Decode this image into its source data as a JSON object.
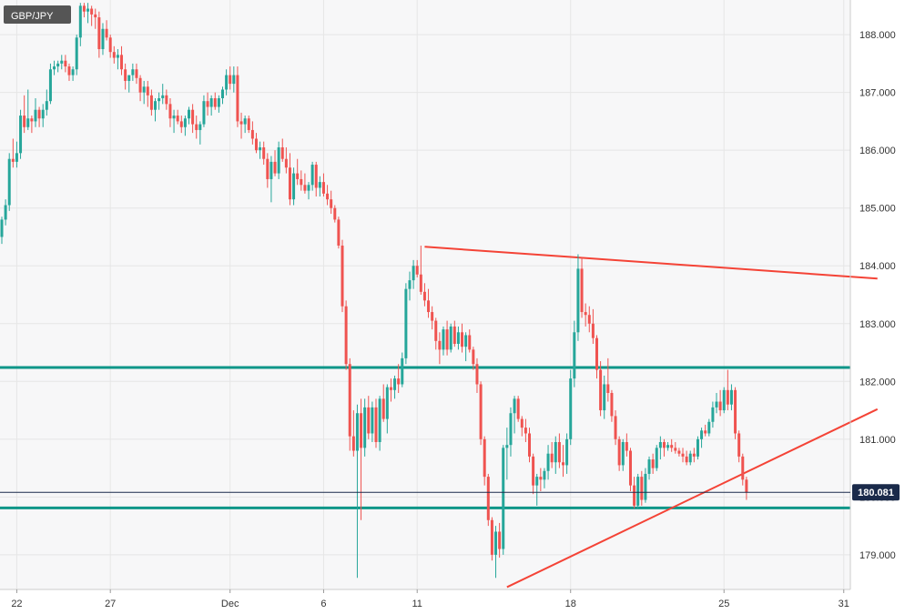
{
  "symbol": "GBP/JPY",
  "colors": {
    "up": "#26a69a",
    "down": "#ef5350",
    "trendline": "#f44336",
    "support": "#0e9688",
    "grid": "#e6e6e6",
    "plot_bg": "#f7f7f8",
    "axis_text": "#333333",
    "badge_bg": "#555555",
    "price_line": "#1a2a4a",
    "price_badge_bg": "#1a2a4a"
  },
  "chart_data": {
    "type": "candlestick",
    "title": "GBP/JPY",
    "timeframe": "4-hour candles",
    "ylim": [
      178.4,
      188.6
    ],
    "y_ticks": [
      179.0,
      180.0,
      181.0,
      182.0,
      183.0,
      184.0,
      185.0,
      186.0,
      187.0,
      188.0
    ],
    "y_tick_labels": [
      "179.000",
      "180.000",
      "181.000",
      "182.000",
      "183.000",
      "184.000",
      "185.000",
      "186.000",
      "187.000",
      "188.000"
    ],
    "x_ticks": [
      {
        "label": "22",
        "index": 4
      },
      {
        "label": "27",
        "index": 29
      },
      {
        "label": "Dec",
        "index": 61
      },
      {
        "label": "6",
        "index": 86
      },
      {
        "label": "11",
        "index": 111
      },
      {
        "label": "18",
        "index": 152
      },
      {
        "label": "25",
        "index": 193
      },
      {
        "label": "31",
        "index": 225
      }
    ],
    "x_range": [
      0,
      234
    ],
    "last_price": 180.081,
    "last_price_label": "180.081",
    "horizontal_levels": [
      182.24,
      179.81
    ],
    "trendlines": [
      {
        "from": [
          113,
          184.33
        ],
        "to": [
          234,
          183.78
        ]
      },
      {
        "from": [
          135,
          178.44
        ],
        "to": [
          234,
          181.52
        ]
      }
    ],
    "candles": [
      [
        0,
        184.5,
        184.85,
        184.38,
        184.8
      ],
      [
        1,
        184.8,
        185.15,
        184.7,
        185.05
      ],
      [
        2,
        185.05,
        185.95,
        184.95,
        185.85
      ],
      [
        3,
        185.85,
        186.2,
        185.7,
        185.8
      ],
      [
        4,
        185.8,
        186.15,
        185.7,
        185.95
      ],
      [
        5,
        185.95,
        186.7,
        185.85,
        186.6
      ],
      [
        6,
        186.6,
        186.95,
        186.3,
        186.4
      ],
      [
        7,
        186.4,
        187.05,
        186.35,
        186.55
      ],
      [
        8,
        186.55,
        186.6,
        186.3,
        186.5
      ],
      [
        9,
        186.5,
        186.9,
        186.4,
        186.7
      ],
      [
        10,
        186.7,
        186.75,
        186.4,
        186.55
      ],
      [
        11,
        186.55,
        186.8,
        186.4,
        186.7
      ],
      [
        12,
        186.7,
        187.05,
        186.6,
        186.85
      ],
      [
        13,
        186.85,
        187.5,
        186.8,
        187.4
      ],
      [
        14,
        187.4,
        187.55,
        187.3,
        187.45
      ],
      [
        15,
        187.45,
        187.55,
        187.35,
        187.5
      ],
      [
        16,
        187.5,
        187.65,
        187.4,
        187.55
      ],
      [
        17,
        187.55,
        187.65,
        187.35,
        187.45
      ],
      [
        18,
        187.45,
        187.5,
        187.2,
        187.3
      ],
      [
        19,
        187.3,
        187.45,
        187.2,
        187.4
      ],
      [
        20,
        187.4,
        188.0,
        187.3,
        187.95
      ],
      [
        21,
        187.95,
        188.55,
        187.8,
        188.5
      ],
      [
        22,
        188.5,
        188.55,
        188.3,
        188.4
      ],
      [
        23,
        188.4,
        188.55,
        188.2,
        188.45
      ],
      [
        24,
        188.45,
        188.5,
        188.15,
        188.35
      ],
      [
        25,
        188.35,
        188.45,
        188.1,
        188.3
      ],
      [
        26,
        188.3,
        188.4,
        187.6,
        187.75
      ],
      [
        27,
        187.75,
        188.2,
        187.65,
        188.1
      ],
      [
        28,
        188.1,
        188.25,
        187.9,
        187.95
      ],
      [
        29,
        187.95,
        188.0,
        187.6,
        187.7
      ],
      [
        30,
        187.7,
        187.8,
        187.5,
        187.6
      ],
      [
        31,
        187.6,
        187.75,
        187.4,
        187.65
      ],
      [
        32,
        187.65,
        187.8,
        187.3,
        187.4
      ],
      [
        33,
        187.4,
        187.5,
        187.05,
        187.2
      ],
      [
        34,
        187.2,
        187.3,
        187.0,
        187.3
      ],
      [
        35,
        187.3,
        187.5,
        187.2,
        187.4
      ],
      [
        36,
        187.4,
        187.5,
        187.15,
        187.25
      ],
      [
        37,
        187.25,
        187.3,
        186.85,
        187.0
      ],
      [
        38,
        187.0,
        187.2,
        186.8,
        187.1
      ],
      [
        39,
        187.1,
        187.2,
        186.75,
        186.95
      ],
      [
        40,
        186.95,
        187.05,
        186.6,
        186.7
      ],
      [
        41,
        186.7,
        186.9,
        186.5,
        186.85
      ],
      [
        42,
        186.85,
        187.0,
        186.7,
        186.9
      ],
      [
        43,
        186.9,
        187.15,
        186.8,
        186.95
      ],
      [
        44,
        186.95,
        187.05,
        186.7,
        186.8
      ],
      [
        45,
        186.8,
        186.9,
        186.4,
        186.55
      ],
      [
        46,
        186.55,
        186.7,
        186.3,
        186.6
      ],
      [
        47,
        186.6,
        186.7,
        186.45,
        186.5
      ],
      [
        48,
        186.5,
        186.6,
        186.3,
        186.4
      ],
      [
        49,
        186.4,
        186.6,
        186.25,
        186.55
      ],
      [
        50,
        186.55,
        186.75,
        186.45,
        186.7
      ],
      [
        51,
        186.7,
        186.8,
        186.3,
        186.45
      ],
      [
        52,
        186.45,
        186.6,
        186.2,
        186.35
      ],
      [
        53,
        186.35,
        186.5,
        186.1,
        186.45
      ],
      [
        54,
        186.45,
        186.95,
        186.4,
        186.85
      ],
      [
        55,
        186.85,
        187.0,
        186.6,
        186.75
      ],
      [
        56,
        186.75,
        186.95,
        186.6,
        186.9
      ],
      [
        57,
        186.9,
        187.0,
        186.7,
        186.75
      ],
      [
        58,
        186.75,
        186.95,
        186.65,
        186.9
      ],
      [
        59,
        186.9,
        187.1,
        186.8,
        187.05
      ],
      [
        60,
        187.05,
        187.4,
        186.95,
        187.3
      ],
      [
        61,
        187.3,
        187.45,
        187.05,
        187.15
      ],
      [
        62,
        187.15,
        187.45,
        187.0,
        187.3
      ],
      [
        63,
        187.3,
        187.45,
        186.4,
        186.5
      ],
      [
        64,
        186.5,
        186.65,
        186.2,
        186.45
      ],
      [
        65,
        186.45,
        186.6,
        186.3,
        186.55
      ],
      [
        66,
        186.55,
        186.6,
        186.3,
        186.35
      ],
      [
        67,
        186.35,
        186.5,
        186.1,
        186.2
      ],
      [
        68,
        186.2,
        186.3,
        185.95,
        186.0
      ],
      [
        69,
        186.0,
        186.15,
        185.85,
        186.05
      ],
      [
        70,
        186.05,
        186.15,
        185.75,
        185.85
      ],
      [
        71,
        185.85,
        185.95,
        185.35,
        185.5
      ],
      [
        72,
        185.5,
        185.9,
        185.1,
        185.8
      ],
      [
        73,
        185.8,
        186.0,
        185.55,
        185.6
      ],
      [
        74,
        185.6,
        186.15,
        185.5,
        186.05
      ],
      [
        75,
        186.05,
        186.2,
        185.8,
        185.85
      ],
      [
        76,
        185.85,
        186.05,
        185.6,
        185.7
      ],
      [
        77,
        185.7,
        185.95,
        185.05,
        185.15
      ],
      [
        78,
        185.15,
        185.7,
        185.05,
        185.6
      ],
      [
        79,
        185.6,
        185.85,
        185.4,
        185.5
      ],
      [
        80,
        185.5,
        185.65,
        185.3,
        185.4
      ],
      [
        81,
        185.4,
        185.6,
        185.25,
        185.3
      ],
      [
        82,
        185.3,
        185.45,
        185.15,
        185.4
      ],
      [
        83,
        185.4,
        185.8,
        185.3,
        185.75
      ],
      [
        84,
        185.75,
        185.8,
        185.2,
        185.35
      ],
      [
        85,
        185.35,
        185.55,
        185.2,
        185.45
      ],
      [
        86,
        185.45,
        185.6,
        185.2,
        185.25
      ],
      [
        87,
        185.25,
        185.4,
        185.05,
        185.15
      ],
      [
        88,
        185.15,
        185.3,
        184.9,
        185.0
      ],
      [
        89,
        185.0,
        185.05,
        184.75,
        184.8
      ],
      [
        90,
        184.8,
        184.85,
        184.3,
        184.35
      ],
      [
        91,
        184.35,
        184.45,
        183.2,
        183.3
      ],
      [
        92,
        183.3,
        183.4,
        182.2,
        182.3
      ],
      [
        93,
        182.3,
        182.4,
        180.8,
        181.05
      ],
      [
        94,
        181.05,
        181.5,
        180.7,
        180.8
      ],
      [
        95,
        180.8,
        181.6,
        178.6,
        181.45
      ],
      [
        96,
        181.45,
        181.7,
        179.6,
        180.85
      ],
      [
        97,
        180.85,
        181.7,
        180.7,
        181.55
      ],
      [
        98,
        181.55,
        181.75,
        181.0,
        181.1
      ],
      [
        99,
        181.1,
        181.65,
        180.95,
        181.55
      ],
      [
        100,
        181.55,
        181.7,
        180.85,
        180.95
      ],
      [
        101,
        180.95,
        181.75,
        180.8,
        181.7
      ],
      [
        102,
        181.7,
        181.95,
        181.3,
        181.35
      ],
      [
        103,
        181.35,
        181.95,
        181.1,
        181.9
      ],
      [
        104,
        181.9,
        182.05,
        181.65,
        181.85
      ],
      [
        105,
        181.85,
        182.1,
        181.7,
        182.05
      ],
      [
        106,
        182.05,
        182.3,
        181.8,
        181.95
      ],
      [
        107,
        181.95,
        182.5,
        181.9,
        182.4
      ],
      [
        108,
        182.4,
        183.7,
        182.3,
        183.6
      ],
      [
        109,
        183.6,
        183.9,
        183.4,
        183.75
      ],
      [
        110,
        183.75,
        184.1,
        183.6,
        184.0
      ],
      [
        111,
        184.0,
        184.1,
        183.8,
        183.85
      ],
      [
        112,
        183.85,
        184.35,
        183.5,
        183.55
      ],
      [
        113,
        183.55,
        183.7,
        183.3,
        183.4
      ],
      [
        114,
        183.4,
        183.6,
        183.1,
        183.2
      ],
      [
        115,
        183.2,
        183.3,
        182.9,
        183.05
      ],
      [
        116,
        183.05,
        183.1,
        182.55,
        182.7
      ],
      [
        117,
        182.7,
        182.85,
        182.3,
        182.55
      ],
      [
        118,
        182.55,
        182.95,
        182.45,
        182.9
      ],
      [
        119,
        182.9,
        183.05,
        182.45,
        182.55
      ],
      [
        120,
        182.55,
        183.0,
        182.5,
        182.95
      ],
      [
        121,
        182.95,
        183.05,
        182.6,
        182.65
      ],
      [
        122,
        182.65,
        182.95,
        182.55,
        182.85
      ],
      [
        123,
        182.85,
        183.0,
        182.5,
        182.6
      ],
      [
        124,
        182.6,
        182.85,
        182.35,
        182.8
      ],
      [
        125,
        182.8,
        182.9,
        182.5,
        182.55
      ],
      [
        126,
        182.55,
        182.6,
        182.2,
        182.3
      ],
      [
        127,
        182.3,
        182.4,
        181.8,
        181.95
      ],
      [
        128,
        181.95,
        182.0,
        180.9,
        181.0
      ],
      [
        129,
        181.0,
        181.05,
        180.2,
        180.35
      ],
      [
        130,
        180.35,
        180.4,
        179.5,
        179.6
      ],
      [
        131,
        179.6,
        179.65,
        178.9,
        179.0
      ],
      [
        132,
        179.0,
        179.5,
        178.6,
        179.4
      ],
      [
        133,
        179.4,
        179.55,
        178.95,
        179.1
      ],
      [
        134,
        179.1,
        180.9,
        179.0,
        180.85
      ],
      [
        135,
        180.85,
        181.2,
        180.3,
        180.9
      ],
      [
        136,
        180.9,
        181.55,
        180.7,
        181.45
      ],
      [
        137,
        181.45,
        181.75,
        181.1,
        181.7
      ],
      [
        138,
        181.7,
        181.75,
        181.3,
        181.35
      ],
      [
        139,
        181.35,
        181.4,
        181.05,
        181.2
      ],
      [
        140,
        181.2,
        181.35,
        180.95,
        181.1
      ],
      [
        141,
        181.1,
        181.2,
        180.6,
        180.7
      ],
      [
        142,
        180.7,
        180.75,
        180.05,
        180.2
      ],
      [
        143,
        180.2,
        180.4,
        179.85,
        180.35
      ],
      [
        144,
        180.35,
        180.5,
        180.1,
        180.3
      ],
      [
        145,
        180.3,
        180.5,
        180.15,
        180.45
      ],
      [
        146,
        180.45,
        180.9,
        180.3,
        180.75
      ],
      [
        147,
        180.75,
        180.95,
        180.5,
        180.6
      ],
      [
        148,
        180.6,
        181.05,
        180.4,
        180.95
      ],
      [
        149,
        180.95,
        181.1,
        180.5,
        180.6
      ],
      [
        150,
        180.6,
        180.9,
        180.35,
        180.55
      ],
      [
        151,
        180.55,
        181.1,
        180.4,
        181.0
      ],
      [
        152,
        181.0,
        182.2,
        180.9,
        182.05
      ],
      [
        153,
        182.05,
        183.05,
        181.9,
        182.85
      ],
      [
        154,
        182.85,
        184.2,
        182.7,
        183.95
      ],
      [
        155,
        183.95,
        184.15,
        183.1,
        183.2
      ],
      [
        156,
        183.2,
        183.35,
        182.95,
        183.15
      ],
      [
        157,
        183.15,
        183.3,
        182.85,
        183.0
      ],
      [
        158,
        183.0,
        183.25,
        182.65,
        182.75
      ],
      [
        159,
        182.75,
        182.8,
        182.05,
        182.2
      ],
      [
        160,
        182.2,
        182.35,
        181.4,
        181.5
      ],
      [
        161,
        181.5,
        182.1,
        181.35,
        181.95
      ],
      [
        162,
        181.95,
        182.4,
        181.65,
        181.8
      ],
      [
        163,
        181.8,
        181.85,
        181.3,
        181.4
      ],
      [
        164,
        181.4,
        181.5,
        180.9,
        181.0
      ],
      [
        165,
        181.0,
        181.05,
        180.45,
        180.55
      ],
      [
        166,
        180.55,
        181.0,
        180.45,
        180.95
      ],
      [
        167,
        180.95,
        181.1,
        180.7,
        180.8
      ],
      [
        168,
        180.8,
        180.85,
        180.1,
        180.2
      ],
      [
        169,
        180.2,
        180.35,
        179.8,
        179.85
      ],
      [
        170,
        179.85,
        180.4,
        179.8,
        180.35
      ],
      [
        171,
        180.35,
        180.45,
        179.85,
        179.95
      ],
      [
        172,
        179.95,
        180.5,
        179.9,
        180.4
      ],
      [
        173,
        180.4,
        180.7,
        180.3,
        180.65
      ],
      [
        174,
        180.65,
        180.75,
        180.4,
        180.5
      ],
      [
        175,
        180.5,
        180.9,
        180.45,
        180.85
      ],
      [
        176,
        180.85,
        181.05,
        180.65,
        180.95
      ],
      [
        177,
        180.95,
        181.0,
        180.7,
        180.85
      ],
      [
        178,
        180.85,
        180.95,
        180.8,
        180.9
      ],
      [
        179,
        180.9,
        181.0,
        180.78,
        180.85
      ],
      [
        180,
        180.85,
        180.95,
        180.75,
        180.8
      ],
      [
        181,
        180.8,
        180.85,
        180.7,
        180.75
      ],
      [
        182,
        180.75,
        180.85,
        180.6,
        180.7
      ],
      [
        183,
        180.7,
        180.8,
        180.55,
        180.6
      ],
      [
        184,
        180.6,
        180.8,
        180.55,
        180.75
      ],
      [
        185,
        180.75,
        180.85,
        180.6,
        180.7
      ],
      [
        186,
        180.7,
        181.05,
        180.65,
        181.0
      ],
      [
        187,
        181.0,
        181.2,
        180.85,
        181.15
      ],
      [
        188,
        181.15,
        181.25,
        181.05,
        181.1
      ],
      [
        189,
        181.1,
        181.35,
        181.05,
        181.3
      ],
      [
        190,
        181.3,
        181.65,
        181.2,
        181.55
      ],
      [
        191,
        181.55,
        181.8,
        181.45,
        181.65
      ],
      [
        192,
        181.65,
        181.85,
        181.4,
        181.5
      ],
      [
        193,
        181.5,
        181.9,
        181.45,
        181.85
      ],
      [
        194,
        181.85,
        182.2,
        181.5,
        181.6
      ],
      [
        195,
        181.6,
        181.95,
        181.5,
        181.85
      ],
      [
        196,
        181.85,
        181.9,
        181.0,
        181.1
      ],
      [
        197,
        181.1,
        181.15,
        180.6,
        180.7
      ],
      [
        198,
        180.7,
        180.75,
        180.2,
        180.3
      ],
      [
        199,
        180.3,
        180.35,
        179.95,
        180.08
      ]
    ]
  },
  "aria_label": "GBP/JPY candlestick chart with trendlines and support levels"
}
